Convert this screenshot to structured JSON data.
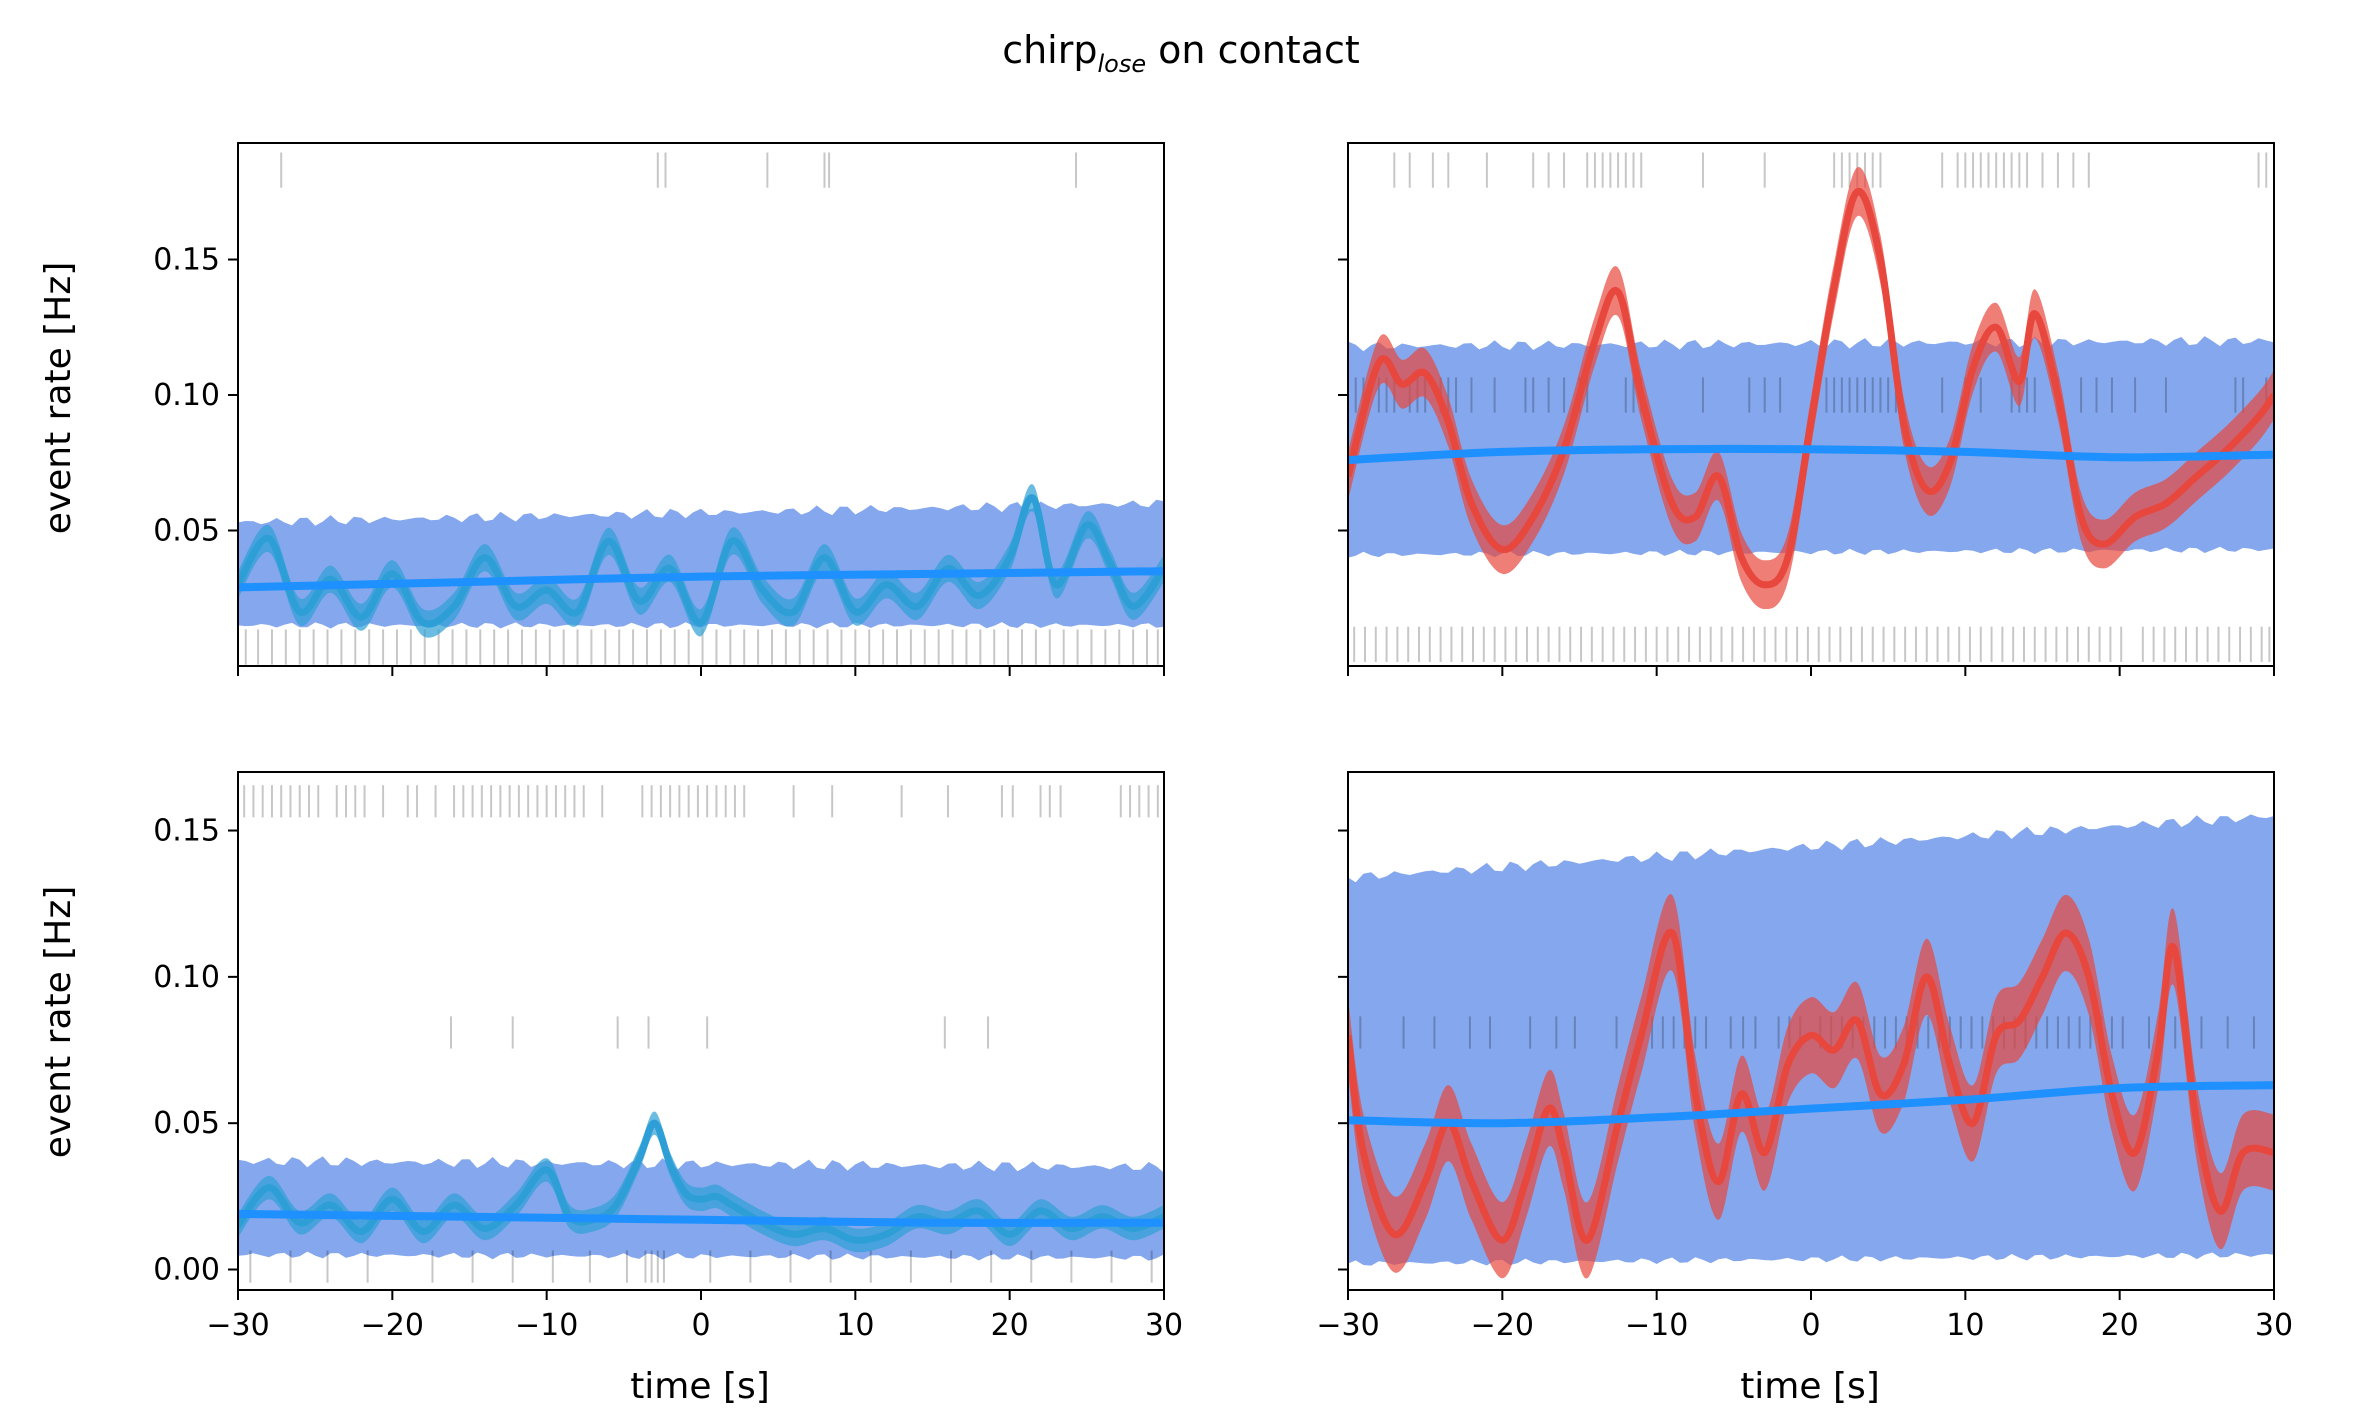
{
  "title_main": "chirp",
  "title_sub": "lose",
  "title_rest": " on contact",
  "colors": {
    "band": "#6f98ea",
    "baseline": "#1e90ff",
    "signal_left": "#2e9fd6",
    "signal_right": "#e8473d",
    "raster": "#000000"
  },
  "chart_data": [
    {
      "type": "line",
      "panel": "top-left",
      "xlabel": "",
      "ylabel": "event rate [Hz]",
      "xlim": [
        -30,
        30
      ],
      "ylim": [
        0,
        0.193
      ],
      "xticks": [
        -30,
        -20,
        -10,
        0,
        10,
        20,
        30
      ],
      "yticks": [
        0.05,
        0.1,
        0.15
      ],
      "ytick_labels": [
        "0.05",
        "0.10",
        "0.15"
      ],
      "show_xtick_labels": false,
      "band": {
        "x": [
          -30,
          30
        ],
        "lower": [
          0.015,
          0.015
        ],
        "upper": [
          0.053,
          0.06
        ]
      },
      "baseline": {
        "x": [
          -30,
          -15,
          0,
          15,
          30
        ],
        "y": [
          0.029,
          0.031,
          0.033,
          0.034,
          0.035
        ]
      },
      "signal": {
        "x": [
          -30,
          -28,
          -26,
          -24,
          -22,
          -20,
          -18,
          -16,
          -14,
          -12,
          -10,
          -8,
          -6,
          -4,
          -2,
          0,
          2,
          4,
          6,
          8,
          10,
          12,
          14,
          16,
          18,
          20,
          21.5,
          23,
          25,
          26.5,
          28,
          30
        ],
        "y": [
          0.03,
          0.047,
          0.02,
          0.032,
          0.018,
          0.034,
          0.016,
          0.022,
          0.04,
          0.022,
          0.028,
          0.02,
          0.046,
          0.024,
          0.036,
          0.016,
          0.046,
          0.028,
          0.02,
          0.04,
          0.02,
          0.03,
          0.022,
          0.036,
          0.026,
          0.04,
          0.062,
          0.03,
          0.052,
          0.038,
          0.022,
          0.036
        ],
        "spread": 0.005
      },
      "raster_rows": [
        {
          "y": 0.183,
          "h": 0.013,
          "x": [
            -27.2,
            -2.8,
            -2.3,
            4.3,
            8,
            8.3,
            24.3
          ]
        },
        {
          "y": 0.007,
          "h": 0.013,
          "x": [
            -29.5,
            -28.7,
            -27.8,
            -26.9,
            -26,
            -25.1,
            -24.2,
            -23.3,
            -22.4,
            -21.5,
            -20.6,
            -19.7,
            -18.8,
            -17.9,
            -17,
            -16.1,
            -15.2,
            -14.3,
            -13.4,
            -12.5,
            -11.6,
            -10.7,
            -9.8,
            -8.9,
            -8,
            -7.1,
            -6.2,
            -5.3,
            -4.4,
            -3.5,
            -2.6,
            -1.7,
            -0.8,
            0.1,
            1,
            1.9,
            2.8,
            3.7,
            4.6,
            5.5,
            6.4,
            7.3,
            8.2,
            9.1,
            10,
            10.9,
            11.8,
            12.7,
            13.6,
            14.5,
            15.4,
            16.3,
            17.2,
            18.1,
            19,
            19.9,
            20.8,
            21.7,
            22.6,
            23.5,
            24.4,
            25.3,
            26.2,
            27.1,
            28,
            28.9,
            29.6
          ]
        }
      ]
    },
    {
      "type": "line",
      "panel": "top-right",
      "xlabel": "",
      "ylabel": "",
      "xlim": [
        -30,
        30
      ],
      "ylim": [
        0,
        0.193
      ],
      "xticks": [
        -30,
        -20,
        -10,
        0,
        10,
        20,
        30
      ],
      "yticks": [
        0.05,
        0.1,
        0.15
      ],
      "show_xtick_labels": false,
      "show_ytick_labels": false,
      "band": {
        "x": [
          -30,
          30
        ],
        "lower": [
          0.041,
          0.043
        ],
        "upper": [
          0.118,
          0.12
        ]
      },
      "baseline": {
        "x": [
          -30,
          -20,
          -10,
          0,
          10,
          20,
          30
        ],
        "y": [
          0.076,
          0.079,
          0.08,
          0.08,
          0.079,
          0.077,
          0.078
        ]
      },
      "signal": {
        "x": [
          -30,
          -28,
          -26.5,
          -25,
          -23.5,
          -22,
          -20,
          -18,
          -16,
          -14,
          -12.5,
          -11,
          -9,
          -7.5,
          -6,
          -4.5,
          -3,
          -1.5,
          0,
          1.5,
          3,
          4.5,
          6,
          7.5,
          9,
          10.5,
          12,
          13.5,
          14.5,
          16,
          17.5,
          19,
          21,
          23,
          25,
          27,
          29,
          30
        ],
        "y": [
          0.07,
          0.112,
          0.104,
          0.108,
          0.09,
          0.06,
          0.043,
          0.055,
          0.08,
          0.12,
          0.138,
          0.1,
          0.06,
          0.055,
          0.07,
          0.04,
          0.03,
          0.04,
          0.09,
          0.14,
          0.175,
          0.15,
          0.09,
          0.065,
          0.075,
          0.11,
          0.125,
          0.105,
          0.13,
          0.1,
          0.055,
          0.045,
          0.055,
          0.06,
          0.07,
          0.08,
          0.092,
          0.1
        ],
        "spread": 0.009
      },
      "raster_rows": [
        {
          "y": 0.183,
          "h": 0.013,
          "x": [
            -27,
            -26,
            -24.5,
            -23.5,
            -21,
            -18,
            -17,
            -16,
            -14.5,
            -14,
            -13.5,
            -13,
            -12.5,
            -12,
            -11.5,
            -11,
            -7,
            -3,
            1.5,
            2,
            2.5,
            3,
            3.5,
            4,
            4.5,
            8.5,
            9.5,
            10,
            10.5,
            11,
            11.5,
            12,
            12.5,
            13,
            13.5,
            14,
            15,
            16,
            17,
            18,
            29,
            29.5
          ]
        },
        {
          "y": 0.1,
          "h": 0.013,
          "x": [
            -29.5,
            -29,
            -28,
            -27.5,
            -27,
            -26,
            -25.5,
            -25,
            -24,
            -23.5,
            -23,
            -22,
            -20.5,
            -18.5,
            -18,
            -17,
            -16,
            -15,
            -14.5,
            -12,
            -11.5,
            -11,
            -7,
            -4,
            -3,
            -2,
            1,
            1.5,
            2,
            2.5,
            3,
            3.5,
            4,
            4.5,
            5,
            5.5,
            8.5,
            10,
            11,
            13,
            13.5,
            14,
            14.5,
            16,
            17.5,
            18.5,
            19.5,
            21,
            23,
            27.5,
            28,
            29.5
          ]
        },
        {
          "y": 0.008,
          "h": 0.013,
          "x": [
            -29.6,
            -28.9,
            -28.2,
            -27.5,
            -26.8,
            -26.1,
            -25.4,
            -24.7,
            -24,
            -23.3,
            -22.6,
            -21.9,
            -21.2,
            -20.5,
            -19.8,
            -19.1,
            -18.4,
            -17.7,
            -17,
            -16.3,
            -15.6,
            -14.9,
            -14.2,
            -13.5,
            -12.8,
            -12.1,
            -11.4,
            -10.7,
            -10,
            -9.3,
            -8.6,
            -7.9,
            -7.2,
            -6.5,
            -5.8,
            -5.1,
            -4.4,
            -3.7,
            -3,
            -2.3,
            -1.6,
            -0.9,
            -0.2,
            0.5,
            1.2,
            1.9,
            2.6,
            3.3,
            4,
            4.7,
            5.4,
            6.1,
            6.8,
            7.5,
            8.2,
            8.9,
            9.6,
            10.3,
            11,
            11.7,
            12.4,
            13.1,
            13.8,
            14.5,
            15.2,
            15.9,
            16.6,
            17.3,
            18,
            18.7,
            19.4,
            20.1,
            21.5,
            22.2,
            22.9,
            23.6,
            24.3,
            25,
            25.7,
            26.4,
            27.1,
            27.8,
            28.5,
            29.2,
            29.7
          ]
        }
      ]
    },
    {
      "type": "line",
      "panel": "bottom-left",
      "xlabel": "time [s]",
      "ylabel": "event rate [Hz]",
      "xlim": [
        -30,
        30
      ],
      "ylim": [
        -0.007,
        0.17
      ],
      "xticks": [
        -30,
        -20,
        -10,
        0,
        10,
        20,
        30
      ],
      "xtick_labels": [
        "−30",
        "−20",
        "−10",
        "0",
        "10",
        "20",
        "30"
      ],
      "yticks": [
        0.0,
        0.05,
        0.1,
        0.15
      ],
      "ytick_labels": [
        "0.00",
        "0.05",
        "0.10",
        "0.15"
      ],
      "band": {
        "x": [
          -30,
          30
        ],
        "lower": [
          0.005,
          0.004
        ],
        "upper": [
          0.037,
          0.035
        ]
      },
      "baseline": {
        "x": [
          -30,
          -15,
          0,
          15,
          30
        ],
        "y": [
          0.019,
          0.018,
          0.017,
          0.016,
          0.016
        ]
      },
      "signal": {
        "x": [
          -30,
          -28,
          -26,
          -24,
          -22,
          -20,
          -18,
          -16,
          -14,
          -12,
          -10,
          -8.5,
          -7,
          -5.5,
          -4,
          -3,
          -2,
          -1,
          0,
          1,
          2,
          4,
          6,
          8,
          10,
          12,
          14,
          16,
          18,
          20,
          22,
          24,
          26,
          28,
          30
        ],
        "y": [
          0.015,
          0.028,
          0.016,
          0.022,
          0.013,
          0.024,
          0.013,
          0.022,
          0.014,
          0.022,
          0.034,
          0.018,
          0.017,
          0.022,
          0.038,
          0.05,
          0.036,
          0.026,
          0.024,
          0.025,
          0.022,
          0.016,
          0.012,
          0.014,
          0.01,
          0.012,
          0.018,
          0.016,
          0.02,
          0.012,
          0.02,
          0.014,
          0.018,
          0.014,
          0.018
        ],
        "spread": 0.004
      },
      "raster_rows": [
        {
          "y": 0.16,
          "h": 0.011,
          "x": [
            -29.6,
            -29,
            -28.4,
            -27.8,
            -27.2,
            -26.6,
            -26,
            -25.4,
            -24.8,
            -23.6,
            -23,
            -22.4,
            -21.8,
            -20.6,
            -19,
            -18.4,
            -17.2,
            -16,
            -15.4,
            -14.8,
            -14.2,
            -13.6,
            -13,
            -12.4,
            -11.8,
            -11.2,
            -10.6,
            -10,
            -9.4,
            -8.8,
            -8.2,
            -7.6,
            -6.4,
            -3.8,
            -3.2,
            -2.6,
            -2,
            -1.4,
            -0.8,
            -0.2,
            0.4,
            1,
            1.6,
            2.2,
            2.8,
            6,
            8.5,
            13,
            16,
            19.5,
            20.2,
            22,
            22.6,
            23.3,
            27.2,
            27.8,
            28.4,
            29,
            29.6
          ]
        },
        {
          "y": 0.081,
          "h": 0.011,
          "x": [
            -16.2,
            -12.2,
            -5.4,
            -3.4,
            0.4,
            15.8,
            18.6
          ]
        },
        {
          "y": 0.001,
          "h": 0.011,
          "x": [
            -29.2,
            -26.6,
            -24.2,
            -21.6,
            -17.4,
            -14.8,
            -12.2,
            -9.6,
            -7.2,
            -4.8,
            -3.6,
            -3.2,
            -2.8,
            -2.4,
            0.6,
            3.2,
            5.8,
            8.4,
            11,
            13.6,
            16.2,
            18.8,
            21.4,
            24,
            26.6,
            29.2
          ]
        }
      ]
    },
    {
      "type": "line",
      "panel": "bottom-right",
      "xlabel": "time [s]",
      "ylabel": "",
      "xlim": [
        -30,
        30
      ],
      "ylim": [
        -0.007,
        0.17
      ],
      "xticks": [
        -30,
        -20,
        -10,
        0,
        10,
        20,
        30
      ],
      "xtick_labels": [
        "−30",
        "−20",
        "−10",
        "0",
        "10",
        "20",
        "30"
      ],
      "yticks": [
        0.0,
        0.05,
        0.1,
        0.15
      ],
      "show_ytick_labels": false,
      "band": {
        "x": [
          -30,
          30
        ],
        "lower": [
          0.002,
          0.005
        ],
        "upper": [
          0.134,
          0.155
        ]
      },
      "baseline": {
        "x": [
          -30,
          -20,
          -10,
          0,
          10,
          20,
          30
        ],
        "y": [
          0.051,
          0.05,
          0.052,
          0.055,
          0.058,
          0.062,
          0.063
        ]
      },
      "signal": {
        "x": [
          -30,
          -29,
          -27,
          -25,
          -23.5,
          -22,
          -20,
          -18.5,
          -17,
          -16,
          -14.5,
          -12.5,
          -11,
          -9,
          -7.5,
          -6,
          -4.5,
          -3,
          -1.5,
          0,
          1.5,
          3,
          4.5,
          6,
          7.5,
          9,
          10.5,
          12,
          13.5,
          15,
          16.5,
          18,
          19.5,
          21,
          22.5,
          23.5,
          25,
          26.5,
          28,
          30
        ],
        "y": [
          0.08,
          0.04,
          0.012,
          0.03,
          0.05,
          0.03,
          0.01,
          0.03,
          0.055,
          0.04,
          0.01,
          0.05,
          0.08,
          0.115,
          0.06,
          0.03,
          0.06,
          0.04,
          0.07,
          0.08,
          0.075,
          0.085,
          0.06,
          0.07,
          0.1,
          0.07,
          0.05,
          0.08,
          0.085,
          0.1,
          0.115,
          0.1,
          0.06,
          0.04,
          0.075,
          0.11,
          0.05,
          0.02,
          0.04,
          0.04
        ],
        "spread": 0.013
      },
      "raster_rows": [
        {
          "y": 0.081,
          "h": 0.011,
          "x": [
            -29.2,
            -26.4,
            -24.4,
            -22.1,
            -20.8,
            -18.2,
            -16.5,
            -15.3,
            -12.6,
            -10.3,
            -9.6,
            -8.9,
            -8.2,
            -7.5,
            -6.8,
            -5.2,
            -4.4,
            -3.6,
            -2.1,
            -1.4,
            -0.7,
            0.6,
            1.3,
            2,
            2.7,
            3.4,
            4.1,
            4.8,
            5.5,
            6.2,
            6.9,
            7.6,
            8.3,
            9,
            9.7,
            10.4,
            11.1,
            11.8,
            12.5,
            13.2,
            13.9,
            14.6,
            15.3,
            16,
            16.7,
            17.4,
            18.1,
            18.8,
            19.5,
            20.2,
            21.9,
            23.6,
            25.3,
            27,
            28.7
          ]
        }
      ]
    }
  ]
}
